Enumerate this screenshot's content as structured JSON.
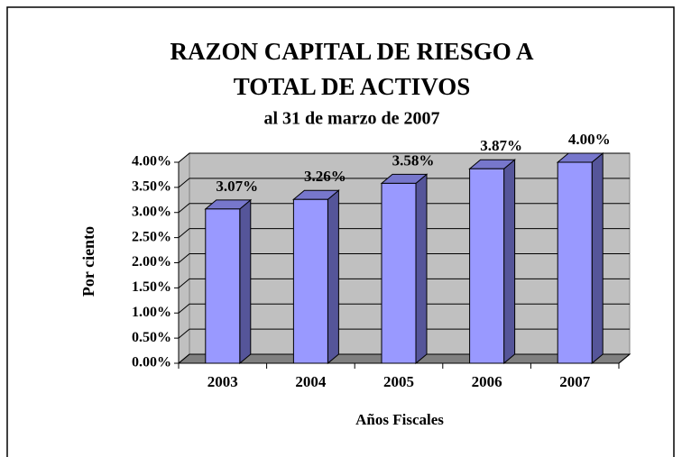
{
  "chart_data": {
    "type": "bar3d",
    "title": [
      "RAZON CAPITAL DE RIESGO A",
      "TOTAL DE ACTIVOS"
    ],
    "subtitle": "al 31 de marzo de 2007",
    "x_label": "Años Fiscales",
    "y_label": "Por ciento",
    "categories": [
      "2003",
      "2004",
      "2005",
      "2006",
      "2007"
    ],
    "values": [
      3.07,
      3.26,
      3.58,
      3.87,
      4.0
    ],
    "value_labels": [
      "3.07%",
      "3.26%",
      "3.58%",
      "3.87%",
      "4.00%"
    ],
    "color": "#9999ff",
    "ylim": [
      0,
      4
    ],
    "yticks": [
      {
        "value": 0,
        "label": "0.00%"
      },
      {
        "value": 0.5,
        "label": "0.50%"
      },
      {
        "value": 1,
        "label": "1.00%"
      },
      {
        "value": 1.5,
        "label": "1.50%"
      },
      {
        "value": 2,
        "label": "2.00%"
      },
      {
        "value": 2.5,
        "label": "2.50%"
      },
      {
        "value": 3,
        "label": "3.00%"
      },
      {
        "value": 3.5,
        "label": "3.50%"
      },
      {
        "value": 4,
        "label": "4.00%"
      }
    ],
    "grid": true
  }
}
